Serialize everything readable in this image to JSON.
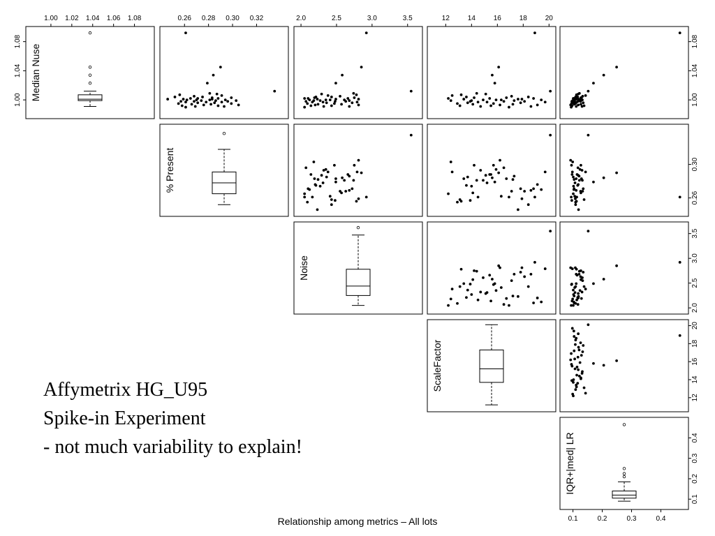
{
  "caption": {
    "line1": "Affymetrix HG_U95",
    "line2": "Spike-in Experiment",
    "line3": "- not much variability to explain!"
  },
  "chart_data": {
    "type": "scatter",
    "subtype": "scatterplot-matrix-upper-with-diagonal-boxplots",
    "title": "Relationship among metrics – All lots",
    "variables": [
      {
        "label": "Median Nuse",
        "range": [
          0.98,
          1.095
        ],
        "ticks": [
          1.0,
          1.04,
          1.08
        ],
        "tick_labels": [
          "1.00",
          "1.04",
          "1.08"
        ],
        "top_ticks": [
          1.0,
          1.02,
          1.04,
          1.06,
          1.08
        ],
        "top_tick_labels": [
          "1.00",
          "1.02",
          "1.04",
          "1.06",
          "1.08"
        ]
      },
      {
        "label": "% Present",
        "range": [
          0.243,
          0.343
        ],
        "ticks": [
          0.26,
          0.28,
          0.3,
          0.32
        ],
        "tick_labels": [
          "0.26",
          "0.28",
          "0.30",
          "0.32"
        ],
        "right_ticks": [
          0.26,
          0.3
        ],
        "right_tick_labels": [
          "0.26",
          "0.30"
        ]
      },
      {
        "label": "Noise",
        "range": [
          1.96,
          3.65
        ],
        "ticks": [
          2.0,
          2.5,
          3.0,
          3.5
        ],
        "tick_labels": [
          "2.0",
          "2.5",
          "3.0",
          "3.5"
        ]
      },
      {
        "label": "ScaleFactor",
        "range": [
          10.9,
          20.2
        ],
        "ticks": [
          12,
          14,
          16,
          18,
          20
        ],
        "tick_labels": [
          "12",
          "14",
          "16",
          "18",
          "20"
        ]
      },
      {
        "label": "IQR+|med| LR",
        "range": [
          0.07,
          0.48
        ],
        "ticks": [
          0.1,
          0.2,
          0.3,
          0.4
        ],
        "tick_labels": [
          "0.1",
          "0.2",
          "0.3",
          "0.4"
        ]
      }
    ],
    "boxplots": [
      {
        "variable": "Median Nuse",
        "whisker_low": 0.991,
        "q1": 0.999,
        "median": 1.001,
        "q3": 1.007,
        "whisker_high": 1.012,
        "outliers": [
          1.023,
          1.034,
          1.045,
          1.092
        ]
      },
      {
        "variable": "% Present",
        "whisker_low": 0.252,
        "q1": 0.265,
        "median": 0.278,
        "q3": 0.291,
        "whisker_high": 0.318,
        "outliers": [
          0.337
        ]
      },
      {
        "variable": "Noise",
        "whisker_low": 2.05,
        "q1": 2.25,
        "median": 2.44,
        "q3": 2.78,
        "whisker_high": 3.47,
        "outliers": [
          3.62
        ]
      },
      {
        "variable": "ScaleFactor",
        "whisker_low": 11.2,
        "q1": 13.7,
        "median": 15.2,
        "q3": 17.3,
        "whisker_high": 20.1,
        "outliers": []
      },
      {
        "variable": "IQR+|med| LR",
        "whisker_low": 0.09,
        "q1": 0.105,
        "median": 0.12,
        "q3": 0.14,
        "whisker_high": 0.185,
        "outliers": [
          0.21,
          0.225,
          0.25,
          0.465
        ]
      }
    ],
    "observations": {
      "columns": [
        "Median Nuse",
        "% Present",
        "Noise",
        "ScaleFactor",
        "IQR+|med| LR"
      ],
      "rows": [
        [
          1.092,
          0.261,
          2.92,
          18.9,
          0.465
        ],
        [
          1.045,
          0.29,
          2.85,
          16.1,
          0.249
        ],
        [
          1.034,
          0.284,
          2.58,
          15.6,
          0.205
        ],
        [
          1.023,
          0.279,
          2.49,
          15.8,
          0.17
        ],
        [
          1.012,
          0.335,
          3.55,
          20.1,
          0.152
        ],
        [
          1.009,
          0.281,
          2.74,
          14.4,
          0.122
        ],
        [
          1.008,
          0.287,
          2.29,
          15.1,
          0.118
        ],
        [
          1.007,
          0.256,
          2.78,
          13.2,
          0.112
        ],
        [
          1.006,
          0.291,
          2.38,
          12.5,
          0.143
        ],
        [
          1.005,
          0.268,
          2.55,
          17.1,
          0.133
        ],
        [
          1.004,
          0.275,
          2.21,
          13.6,
          0.116
        ],
        [
          1.004,
          0.252,
          2.43,
          18.4,
          0.109
        ],
        [
          1.003,
          0.283,
          2.19,
          16.7,
          0.129
        ],
        [
          1.003,
          0.299,
          2.75,
          14.2,
          0.127
        ],
        [
          1.002,
          0.265,
          2.05,
          12.2,
          0.101
        ],
        [
          1.002,
          0.288,
          2.66,
          15.4,
          0.114
        ],
        [
          1.002,
          0.271,
          2.1,
          18.8,
          0.104
        ],
        [
          1.001,
          0.246,
          2.23,
          17.6,
          0.119
        ],
        [
          1.001,
          0.283,
          2.49,
          13.4,
          0.111
        ],
        [
          1.001,
          0.259,
          2.81,
          17.9,
          0.108
        ],
        [
          1.0,
          0.294,
          2.35,
          15.9,
          0.124
        ],
        [
          1.0,
          0.27,
          2.12,
          19.4,
          0.103
        ],
        [
          1.0,
          0.281,
          2.61,
          14.9,
          0.132
        ],
        [
          1.0,
          0.262,
          2.41,
          16.3,
          0.106
        ],
        [
          0.999,
          0.303,
          2.18,
          12.4,
          0.099
        ],
        [
          0.999,
          0.286,
          2.68,
          17.3,
          0.121
        ],
        [
          0.999,
          0.274,
          2.27,
          14.0,
          0.102
        ],
        [
          0.998,
          0.257,
          2.48,
          13.9,
          0.096
        ],
        [
          0.998,
          0.296,
          2.07,
          16.5,
          0.117
        ],
        [
          0.998,
          0.268,
          2.63,
          18.1,
          0.126
        ],
        [
          0.997,
          0.278,
          2.31,
          15.2,
          0.107
        ],
        [
          0.997,
          0.291,
          2.79,
          19.7,
          0.098
        ],
        [
          0.997,
          0.261,
          2.16,
          14.5,
          0.113
        ],
        [
          0.996,
          0.285,
          2.36,
          13.7,
          0.101
        ],
        [
          0.996,
          0.271,
          2.72,
          17.8,
          0.135
        ],
        [
          0.995,
          0.299,
          2.47,
          15.7,
          0.095
        ],
        [
          0.995,
          0.255,
          2.09,
          12.9,
          0.109
        ],
        [
          0.994,
          0.282,
          2.24,
          17.2,
          0.104
        ],
        [
          0.994,
          0.266,
          2.57,
          14.1,
          0.127
        ],
        [
          0.993,
          0.305,
          2.81,
          16.2,
          0.092
        ],
        [
          0.993,
          0.276,
          2.2,
          19.1,
          0.118
        ],
        [
          0.992,
          0.258,
          2.43,
          13.1,
          0.138
        ],
        [
          0.992,
          0.288,
          2.14,
          15.5,
          0.097
        ],
        [
          0.991,
          0.269,
          2.68,
          18.6,
          0.111
        ],
        [
          0.991,
          0.293,
          2.32,
          14.7,
          0.131
        ],
        [
          0.99,
          0.261,
          2.05,
          16.9,
          0.094
        ]
      ]
    }
  }
}
